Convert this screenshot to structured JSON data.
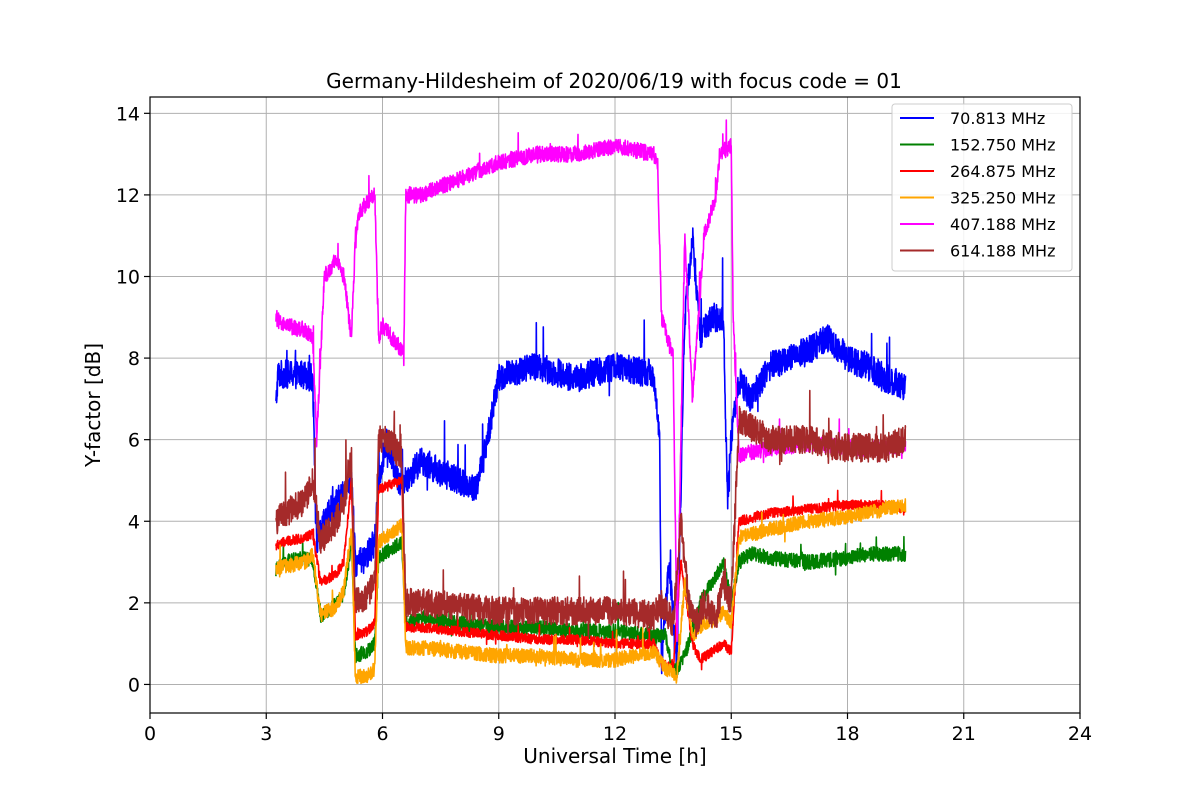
{
  "chart_data": {
    "type": "line",
    "title": "Germany-Hildesheim of 2020/06/19 with focus code = 01",
    "xlabel": "Universal Time [h]",
    "ylabel": "Y-factor [dB]",
    "xlim": [
      0,
      24
    ],
    "ylim": [
      -0.7,
      14.4
    ],
    "x_ticks": [
      "0",
      "3",
      "6",
      "9",
      "12",
      "15",
      "18",
      "21",
      "24"
    ],
    "y_ticks": [
      "0",
      "2",
      "4",
      "6",
      "8",
      "10",
      "12",
      "14"
    ],
    "grid": true,
    "legend_position": "top-right",
    "series": [
      {
        "name": "70.813 MHz",
        "color": "#0000ff",
        "noise": 0.35,
        "x": [
          3.25,
          3.3,
          3.5,
          4.0,
          4.2,
          4.3,
          4.6,
          5.0,
          5.2,
          5.3,
          5.5,
          5.8,
          5.9,
          6.1,
          6.4,
          6.6,
          7.0,
          7.5,
          8.0,
          8.4,
          8.6,
          8.9,
          9.0,
          9.5,
          10.0,
          11.0,
          12.0,
          13.0,
          13.15,
          13.2,
          13.4,
          13.6,
          13.8,
          14.0,
          14.2,
          14.5,
          14.8,
          14.9,
          15.0,
          15.2,
          15.5,
          16.0,
          16.5,
          17.0,
          17.5,
          18.0,
          18.5,
          19.0,
          19.5
        ],
        "y": [
          6.8,
          7.6,
          7.6,
          7.6,
          7.5,
          3.5,
          4.2,
          4.7,
          5.0,
          3.0,
          3.0,
          3.5,
          5.0,
          6.0,
          5.0,
          5.0,
          5.5,
          5.2,
          5.0,
          4.8,
          5.5,
          7.0,
          7.5,
          7.7,
          7.8,
          7.5,
          7.8,
          7.6,
          6.0,
          0.5,
          3.0,
          0.5,
          9.0,
          11.0,
          8.5,
          9.0,
          9.0,
          4.5,
          6.0,
          7.5,
          7.0,
          7.8,
          8.0,
          8.2,
          8.5,
          8.0,
          7.8,
          7.5,
          7.3
        ]
      },
      {
        "name": "152.750 MHz",
        "color": "#008000",
        "noise": 0.18,
        "x": [
          3.25,
          3.5,
          4.0,
          4.2,
          4.4,
          4.6,
          5.0,
          5.2,
          5.3,
          5.6,
          5.8,
          5.9,
          6.2,
          6.5,
          6.6,
          7.0,
          8.0,
          9.0,
          10.0,
          11.0,
          12.0,
          13.0,
          13.3,
          13.5,
          13.7,
          13.9,
          14.2,
          14.5,
          14.8,
          15.0,
          15.2,
          15.5,
          16.0,
          17.0,
          18.0,
          18.5,
          19.0,
          19.5
        ],
        "y": [
          2.8,
          3.0,
          3.1,
          3.0,
          1.7,
          1.8,
          2.2,
          3.5,
          0.7,
          0.8,
          1.0,
          3.1,
          3.3,
          3.5,
          1.5,
          1.6,
          1.5,
          1.4,
          1.4,
          1.3,
          1.3,
          1.2,
          1.2,
          0.3,
          0.5,
          1.0,
          2.0,
          2.5,
          3.0,
          2.0,
          3.0,
          3.2,
          3.1,
          3.0,
          3.1,
          3.2,
          3.2,
          3.2
        ]
      },
      {
        "name": "264.875 MHz",
        "color": "#ff0000",
        "noise": 0.12,
        "x": [
          3.25,
          3.5,
          4.0,
          4.2,
          4.4,
          4.8,
          5.0,
          5.2,
          5.3,
          5.6,
          5.8,
          5.9,
          6.2,
          6.5,
          6.6,
          7.0,
          8.0,
          9.0,
          10.0,
          11.0,
          12.0,
          13.0,
          13.2,
          13.5,
          13.7,
          14.0,
          14.2,
          14.5,
          14.8,
          15.0,
          15.2,
          16.0,
          17.0,
          18.0,
          19.0,
          19.5
        ],
        "y": [
          3.4,
          3.5,
          3.6,
          3.7,
          2.5,
          2.7,
          3.0,
          5.0,
          1.2,
          1.3,
          1.5,
          4.8,
          4.9,
          5.0,
          1.4,
          1.4,
          1.3,
          1.2,
          1.1,
          1.1,
          1.0,
          1.0,
          0.5,
          0.4,
          3.0,
          1.0,
          0.6,
          0.8,
          1.0,
          0.8,
          4.0,
          4.2,
          4.3,
          4.4,
          4.4,
          4.3
        ]
      },
      {
        "name": "325.250 MHz",
        "color": "#ffa500",
        "noise": 0.18,
        "x": [
          3.25,
          3.5,
          4.0,
          4.2,
          4.4,
          4.8,
          5.0,
          5.2,
          5.3,
          5.6,
          5.8,
          5.9,
          6.2,
          6.5,
          6.6,
          7.0,
          8.0,
          9.0,
          10.0,
          11.0,
          12.0,
          13.0,
          13.3,
          13.6,
          13.8,
          14.0,
          14.3,
          14.6,
          14.8,
          15.0,
          15.2,
          16.0,
          17.0,
          18.0,
          19.0,
          19.5
        ],
        "y": [
          2.8,
          2.9,
          3.0,
          3.2,
          1.7,
          1.9,
          2.3,
          3.8,
          0.2,
          0.2,
          0.4,
          3.5,
          3.7,
          3.9,
          0.9,
          0.9,
          0.8,
          0.7,
          0.7,
          0.6,
          0.6,
          0.8,
          0.4,
          0.2,
          2.5,
          1.2,
          1.5,
          1.6,
          1.8,
          1.5,
          3.6,
          3.8,
          4.0,
          4.1,
          4.3,
          4.4
        ]
      },
      {
        "name": "407.188 MHz",
        "color": "#ff00ff",
        "noise": 0.2,
        "x": [
          3.25,
          3.4,
          4.0,
          4.2,
          4.3,
          4.5,
          4.8,
          5.0,
          5.2,
          5.3,
          5.4,
          5.8,
          5.9,
          6.0,
          6.5,
          6.55,
          6.6,
          7.0,
          8.0,
          9.0,
          10.0,
          11.0,
          12.0,
          13.0,
          13.1,
          13.2,
          13.5,
          13.6,
          13.8,
          14.0,
          14.3,
          14.6,
          14.7,
          15.0,
          15.05,
          15.2,
          15.5,
          16.0,
          17.0,
          18.0,
          19.0,
          19.5
        ],
        "y": [
          9.0,
          8.8,
          8.7,
          8.5,
          6.0,
          10.0,
          10.4,
          10.0,
          8.5,
          11.0,
          11.6,
          12.0,
          8.5,
          8.8,
          8.2,
          8.0,
          12.0,
          12.0,
          12.4,
          12.8,
          13.0,
          13.0,
          13.2,
          13.0,
          12.8,
          9.0,
          8.0,
          1.0,
          11.0,
          7.0,
          11.0,
          12.0,
          13.0,
          13.2,
          9.0,
          5.6,
          5.7,
          5.8,
          5.9,
          5.8,
          5.8,
          5.9
        ]
      },
      {
        "name": "614.188 MHz",
        "color": "#a52a2a",
        "noise": 0.35,
        "x": [
          3.25,
          3.5,
          4.0,
          4.2,
          4.4,
          4.8,
          5.0,
          5.2,
          5.3,
          5.6,
          5.8,
          5.9,
          6.2,
          6.5,
          6.6,
          7.0,
          8.0,
          9.0,
          10.0,
          11.0,
          12.0,
          13.0,
          13.2,
          13.5,
          13.7,
          13.9,
          14.1,
          14.3,
          14.6,
          14.8,
          15.0,
          15.2,
          16.0,
          17.0,
          18.0,
          19.0,
          19.5
        ],
        "y": [
          4.0,
          4.2,
          4.5,
          5.0,
          3.5,
          4.0,
          4.5,
          5.5,
          2.0,
          2.2,
          2.5,
          6.0,
          6.0,
          5.5,
          2.0,
          2.0,
          1.9,
          1.8,
          1.8,
          1.8,
          1.8,
          1.7,
          2.0,
          1.5,
          4.0,
          2.0,
          1.5,
          2.0,
          1.6,
          2.5,
          2.0,
          6.5,
          6.0,
          6.0,
          5.8,
          5.8,
          6.0
        ]
      }
    ]
  }
}
